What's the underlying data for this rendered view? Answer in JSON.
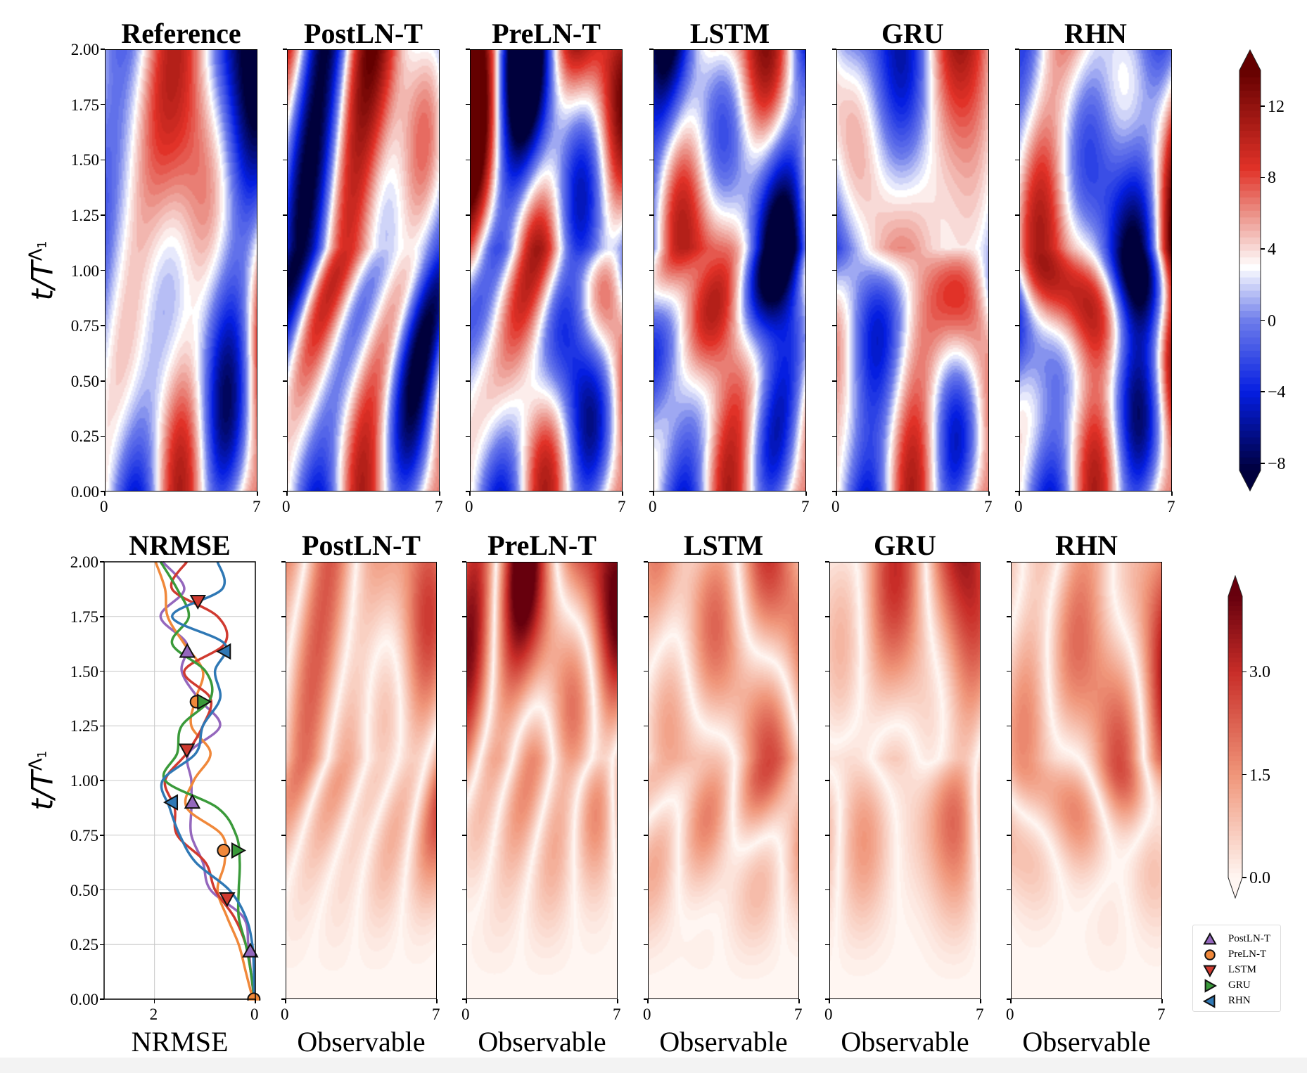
{
  "chart_data": [
    {
      "type": "heatmap",
      "row": "top",
      "panels": [
        {
          "title": "Reference"
        },
        {
          "title": "PostLN-T"
        },
        {
          "title": "PreLN-T"
        },
        {
          "title": "LSTM"
        },
        {
          "title": "GRU"
        },
        {
          "title": "RHN"
        }
      ],
      "xlim": [
        0,
        7
      ],
      "xticks": [
        "0",
        "7"
      ],
      "ylim": [
        0,
        2
      ],
      "yticks": [
        "0.00",
        "0.25",
        "0.50",
        "0.75",
        "1.00",
        "1.25",
        "1.50",
        "1.75",
        "2.00"
      ],
      "ylabel": {
        "base": "t/T",
        "sup": "Λ",
        "sub": "1"
      },
      "colorbar": {
        "colormap": "bwr",
        "extend": "both",
        "range": [
          -8.4,
          14
        ],
        "tick_values": [
          12,
          8,
          4,
          0,
          -4,
          -8
        ],
        "tick_labels": [
          "12",
          "8",
          "4",
          "0",
          "−4",
          "−8"
        ]
      }
    },
    {
      "type": "line",
      "title": "NRMSE",
      "xlabel": "NRMSE",
      "xlim": [
        3,
        0
      ],
      "xticks": [
        {
          "value": 2,
          "label": "2"
        },
        {
          "value": 0,
          "label": "0"
        }
      ],
      "ylim": [
        0,
        2
      ],
      "grid": true,
      "t": [
        0,
        0.125,
        0.25,
        0.375,
        0.5,
        0.625,
        0.75,
        0.875,
        1.0,
        1.125,
        1.25,
        1.375,
        1.5,
        1.625,
        1.75,
        1.875,
        2.0
      ],
      "series": [
        {
          "name": "PostLN-T",
          "color": "#9467bd",
          "marker": "triangle-up",
          "values": [
            0.02,
            0.09,
            0.14,
            0.24,
            0.89,
            1.04,
            1.27,
            1.27,
            1.27,
            1.32,
            0.7,
            1.13,
            1.46,
            1.36,
            1.88,
            1.41,
            1.84
          ],
          "markers": [
            [
              0.22,
              0.1
            ],
            [
              0.9,
              1.25
            ],
            [
              1.59,
              1.35
            ]
          ]
        },
        {
          "name": "PreLN-T",
          "color": "#f0883a",
          "marker": "circle",
          "values": [
            0.05,
            0.19,
            0.33,
            0.56,
            0.75,
            0.61,
            0.66,
            1.36,
            1.22,
            0.89,
            1.27,
            1.18,
            1.04,
            1.41,
            1.74,
            1.79,
            1.98
          ],
          "markers": [
            [
              0.0,
              0.03
            ],
            [
              0.68,
              0.63
            ],
            [
              1.36,
              1.17
            ]
          ]
        },
        {
          "name": "LSTM",
          "color": "#d03a30",
          "marker": "triangle-down",
          "values": [
            0.02,
            0.09,
            0.19,
            0.42,
            0.8,
            0.99,
            1.55,
            1.6,
            1.79,
            1.36,
            1.04,
            0.89,
            1.41,
            0.61,
            0.75,
            1.65,
            1.36
          ],
          "markers": [
            [
              0.46,
              0.56
            ],
            [
              1.14,
              1.36
            ],
            [
              1.82,
              1.14
            ]
          ]
        },
        {
          "name": "GRU",
          "color": "#3a9a3a",
          "marker": "triangle-right",
          "values": [
            0.02,
            0.09,
            0.19,
            0.33,
            0.33,
            0.31,
            0.38,
            0.75,
            1.79,
            1.55,
            1.46,
            0.89,
            0.99,
            1.65,
            1.32,
            1.55,
            1.88
          ],
          "markers": [
            [
              0.68,
              0.35
            ],
            [
              1.36,
              1.03
            ]
          ]
        },
        {
          "name": "RHN",
          "color": "#2f78b5",
          "marker": "triangle-left",
          "values": [
            0.02,
            0.03,
            0.06,
            0.19,
            0.52,
            1.18,
            1.5,
            1.7,
            1.84,
            1.18,
            1.04,
            0.7,
            0.8,
            0.61,
            1.65,
            0.66,
            0.75
          ],
          "markers": [
            [
              0.9,
              1.66
            ],
            [
              1.59,
              0.61
            ]
          ]
        }
      ]
    },
    {
      "type": "heatmap",
      "row": "bottom",
      "panels": [
        {
          "title": "PostLN-T"
        },
        {
          "title": "PreLN-T"
        },
        {
          "title": "LSTM"
        },
        {
          "title": "GRU"
        },
        {
          "title": "RHN"
        }
      ],
      "xlabel": "Observable",
      "xlim": [
        0,
        7
      ],
      "xticks": [
        "0",
        "7"
      ],
      "ylim": [
        0,
        2
      ],
      "yticks": [
        "0.00",
        "0.25",
        "0.50",
        "0.75",
        "1.00",
        "1.25",
        "1.50",
        "1.75",
        "2.00"
      ],
      "ylabel": {
        "base": "t/T",
        "sup": "Λ",
        "sub": "1"
      },
      "colorbar": {
        "colormap": "Reds",
        "extend": "both",
        "range": [
          0,
          4.1
        ],
        "tick_values": [
          3.0,
          1.5,
          0.0
        ],
        "tick_labels": [
          "3.0",
          "1.5",
          "0.0"
        ]
      }
    }
  ]
}
